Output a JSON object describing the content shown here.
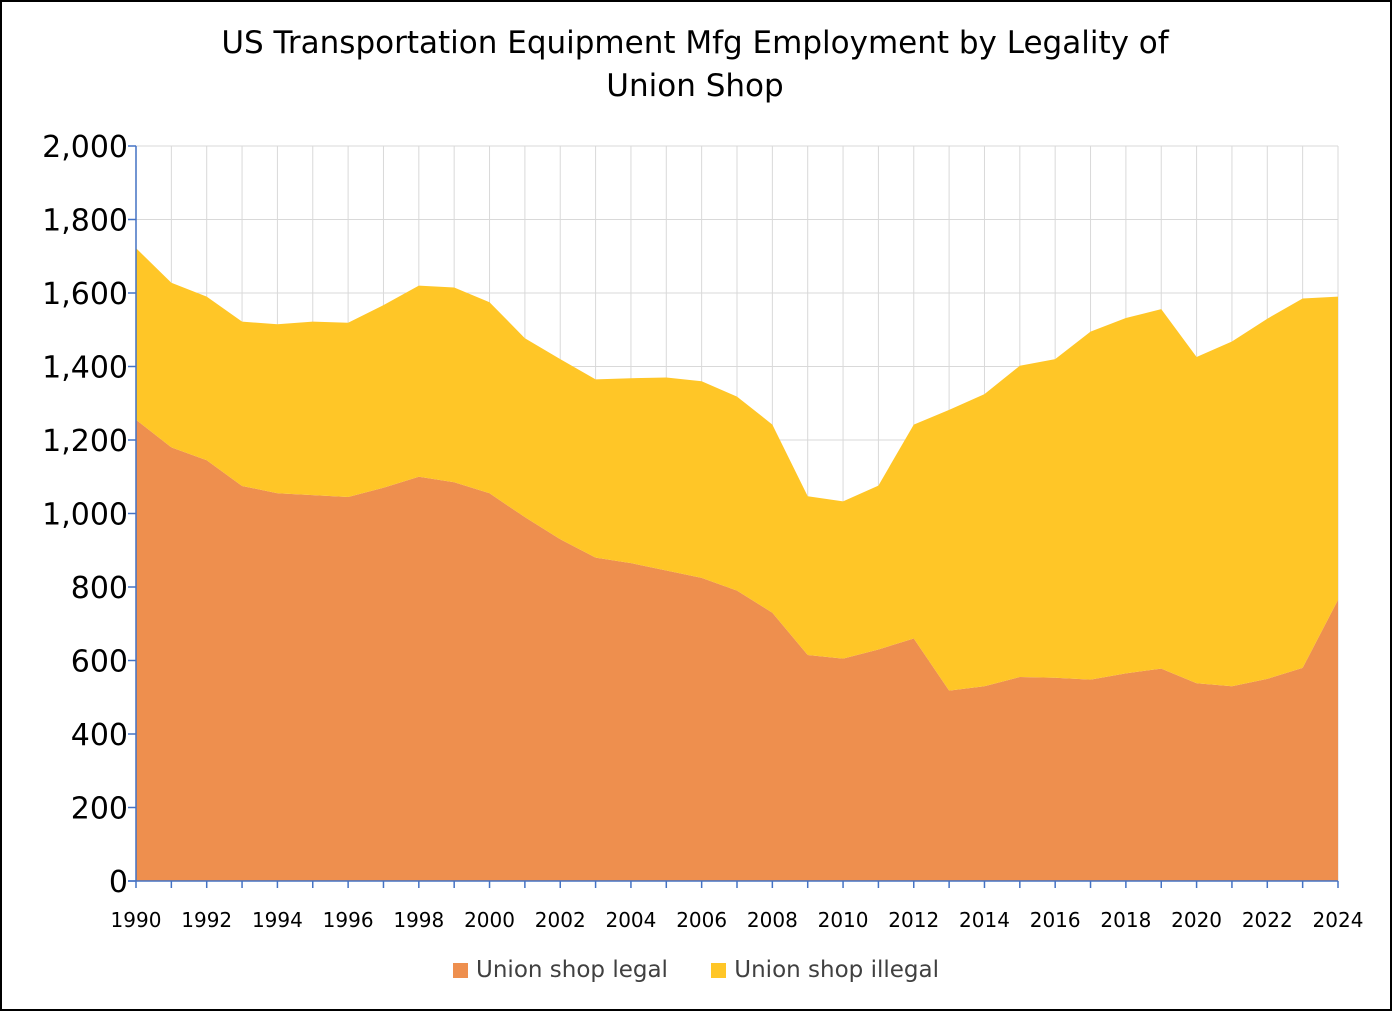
{
  "chart_data": {
    "type": "area",
    "stacked": true,
    "title": "US Transportation Equipment Mfg Employment by Legality of Union Shop",
    "xlabel": "",
    "ylabel": "",
    "ylim": [
      0,
      2000
    ],
    "yticks": [
      0,
      200,
      400,
      600,
      800,
      1000,
      1200,
      1400,
      1600,
      1800,
      2000
    ],
    "ytick_labels": [
      "0",
      "200",
      "400",
      "600",
      "800",
      "1,000",
      "1,200",
      "1,400",
      "1,600",
      "1,800",
      "2,000"
    ],
    "x": [
      1990,
      1991,
      1992,
      1993,
      1994,
      1995,
      1996,
      1997,
      1998,
      1999,
      2000,
      2001,
      2002,
      2003,
      2004,
      2005,
      2006,
      2007,
      2008,
      2009,
      2010,
      2011,
      2012,
      2013,
      2014,
      2015,
      2016,
      2017,
      2018,
      2019,
      2020,
      2021,
      2022,
      2023,
      2024
    ],
    "xtick_labels": [
      "1990",
      "1992",
      "1994",
      "1996",
      "1998",
      "2000",
      "2002",
      "2004",
      "2006",
      "2008",
      "2010",
      "2012",
      "2014",
      "2016",
      "2018",
      "2020",
      "2022",
      "2024"
    ],
    "grid": true,
    "legend_position": "bottom",
    "series": [
      {
        "name": "Union shop legal",
        "color": "#ee8f4e",
        "values": [
          1255,
          1180,
          1145,
          1075,
          1055,
          1050,
          1045,
          1070,
          1100,
          1085,
          1055,
          990,
          930,
          880,
          865,
          845,
          825,
          790,
          730,
          615,
          605,
          630,
          660,
          518,
          530,
          555,
          553,
          548,
          565,
          578,
          538,
          530,
          550,
          580,
          765
        ]
      },
      {
        "name": "Union shop illegal",
        "color": "#ffc627",
        "values": [
          467,
          448,
          445,
          447,
          460,
          472,
          474,
          497,
          520,
          530,
          520,
          487,
          490,
          485,
          503,
          525,
          535,
          528,
          512,
          432,
          428,
          446,
          582,
          764,
          795,
          847,
          867,
          947,
          967,
          978,
          888,
          938,
          980,
          1005,
          825
        ]
      }
    ]
  }
}
